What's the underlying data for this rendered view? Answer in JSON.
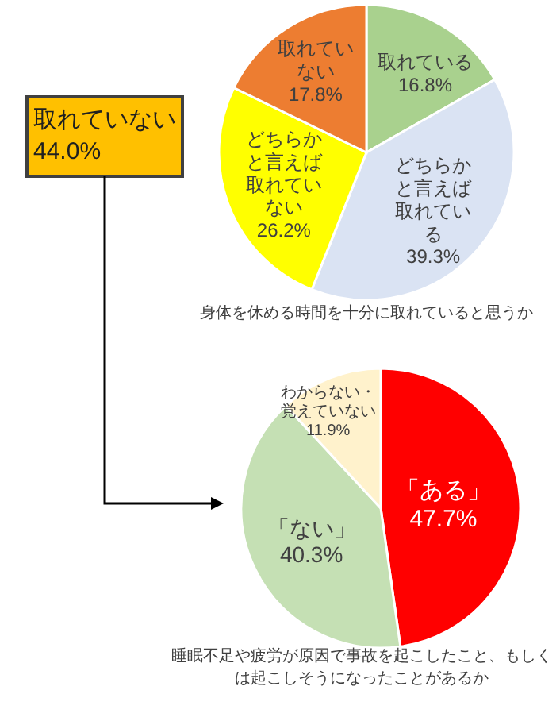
{
  "chart_data": [
    {
      "type": "pie",
      "title": "身体を休める時間を十分に取れていると思うか",
      "categories": [
        "取れている",
        "どちらかと言えば取れている",
        "どちらかと言えば取れていない",
        "取れていない"
      ],
      "values": [
        16.8,
        39.3,
        26.2,
        17.8
      ],
      "colors": [
        "#a9d18e",
        "#dae3f3",
        "#ffff00",
        "#ed7d31"
      ],
      "value_labels": [
        "16.8%",
        "39.3%",
        "26.2%",
        "17.8%"
      ],
      "annotations": [
        "取れていない 44.0%"
      ]
    },
    {
      "type": "pie",
      "title": "睡眠不足や疲労が原因で事故を起こしたこと、もしくは起こしそうになったことがあるか",
      "categories": [
        "「ある」",
        "「ない」",
        "わからない・覚えていない"
      ],
      "values": [
        47.7,
        40.3,
        11.9
      ],
      "colors": [
        "#ff0000",
        "#c5e0b4",
        "#fff2cc"
      ],
      "value_labels": [
        "47.7%",
        "40.3%",
        "11.9%"
      ]
    }
  ]
}
